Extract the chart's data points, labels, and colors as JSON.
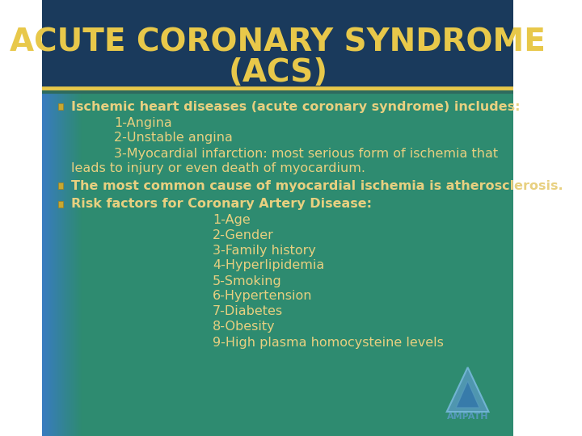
{
  "title_line1": "ACUTE CORONARY SYNDROME",
  "title_line2": "(ACS)",
  "title_color": "#E8C84A",
  "title_bg_color": "#1A3A5C",
  "title_fontsize": 28,
  "separator_color1": "#E8C84A",
  "separator_color2": "#2E6B5E",
  "body_bg_color_left": "#3A7AC8",
  "body_bg_color_right": "#2E8B70",
  "text_color": "#E8D080",
  "bullet_color": "#8B4513",
  "bullet_bg": "#E8C84A",
  "body_fontsize": 11.5,
  "bullet_points": [
    "Ischemic heart diseases (acute coronary syndrome) includes:",
    "The most common cause of myocardial ischemia is atherosclerosis.",
    "Risk factors for Coronary Artery Disease:"
  ],
  "sub_items_1": [
    "1-Angina",
    "2-Unstable angina",
    "3-Myocardial infarction: most serious form of ischemia that\n         leads to injury or even death of myocardium."
  ],
  "sub_items_3": [
    "1-Age",
    "2-Gender",
    "3-Family history",
    "4-Hyperlipidemia",
    "5-Smoking",
    "6-Hypertension",
    "7-Diabetes",
    "8-Obesity",
    "9-High plasma homocysteine levels"
  ],
  "ampath_logo_color": "#5599BB",
  "figsize": [
    7.2,
    5.4
  ],
  "dpi": 100
}
